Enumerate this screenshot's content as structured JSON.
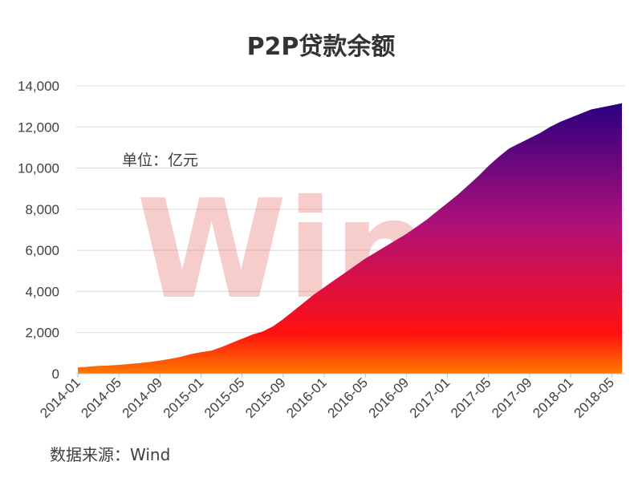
{
  "chart_data": {
    "type": "area",
    "title": "P2P贷款余额",
    "unit_label": "单位：亿元",
    "source": "数据来源：Wind",
    "watermark": "Wind",
    "xlabel": "",
    "ylabel": "",
    "ylim": [
      0,
      14000
    ],
    "y_ticks": [
      "0",
      "2,000",
      "4,000",
      "6,000",
      "8,000",
      "10,000",
      "12,000",
      "14,000"
    ],
    "x_ticks": [
      "2014-01",
      "2014-05",
      "2014-09",
      "2015-01",
      "2015-05",
      "2015-09",
      "2016-01",
      "2016-05",
      "2016-09",
      "2017-01",
      "2017-05",
      "2017-09",
      "2018-01",
      "2018-05"
    ],
    "grid": true,
    "legend": "none",
    "colors": {
      "top": "#2a0080",
      "middle": "#b0107a",
      "bottom": "#ff1010",
      "base": "#ff7a00"
    },
    "x": [
      "2014-01",
      "2014-02",
      "2014-03",
      "2014-04",
      "2014-05",
      "2014-06",
      "2014-07",
      "2014-08",
      "2014-09",
      "2014-10",
      "2014-11",
      "2014-12",
      "2015-01",
      "2015-02",
      "2015-03",
      "2015-04",
      "2015-05",
      "2015-06",
      "2015-07",
      "2015-08",
      "2015-09",
      "2015-10",
      "2015-11",
      "2015-12",
      "2016-01",
      "2016-02",
      "2016-03",
      "2016-04",
      "2016-05",
      "2016-06",
      "2016-07",
      "2016-08",
      "2016-09",
      "2016-10",
      "2016-11",
      "2016-12",
      "2017-01",
      "2017-02",
      "2017-03",
      "2017-04",
      "2017-05",
      "2017-06",
      "2017-07",
      "2017-08",
      "2017-09",
      "2017-10",
      "2017-11",
      "2017-12",
      "2018-01",
      "2018-02",
      "2018-03",
      "2018-04",
      "2018-05",
      "2018-06"
    ],
    "values": [
      300,
      340,
      380,
      400,
      430,
      470,
      520,
      570,
      640,
      720,
      820,
      950,
      1050,
      1120,
      1300,
      1500,
      1700,
      1900,
      2050,
      2300,
      2650,
      3050,
      3450,
      3850,
      4200,
      4550,
      4900,
      5250,
      5600,
      5900,
      6200,
      6500,
      6800,
      7150,
      7500,
      7900,
      8300,
      8700,
      9150,
      9600,
      10100,
      10550,
      10950,
      11200,
      11450,
      11700,
      12000,
      12250,
      12450,
      12650,
      12850,
      12950,
      13050,
      13150
    ]
  }
}
